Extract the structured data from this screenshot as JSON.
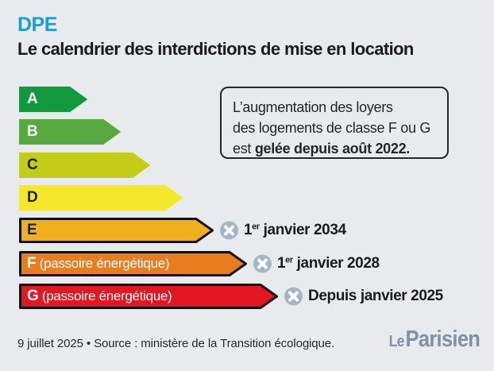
{
  "header": {
    "kicker": "DPE",
    "title": "Le calendrier des interdictions de mise en location"
  },
  "colors": {
    "background": "#e8ebed",
    "kicker_blue": "#1d9bd8",
    "title_text": "#1a1a1a",
    "infobox_border": "#23282b",
    "annotation_icon_circle": "#a3b6c3",
    "annotation_icon_cross": "#ffffff",
    "footer_text": "#23292d",
    "logo_gray_blue": "#7e93a1"
  },
  "chart_data": {
    "type": "bar",
    "orientation": "horizontal",
    "title": "Le calendrier des interdictions de mise en location",
    "subtitle_kicker": "DPE",
    "categories": [
      "A",
      "B",
      "C",
      "D",
      "E",
      "F",
      "G"
    ],
    "legend": false,
    "annotation_icon": "crossed-circle",
    "bars": [
      {
        "label": "A",
        "color": "#12993e",
        "label_color": "#ffffff",
        "outlined": false,
        "relative_length": 86,
        "ban": null
      },
      {
        "label": "B",
        "color": "#57a83f",
        "label_color": "#ffffff",
        "outlined": false,
        "relative_length": 128,
        "ban": null
      },
      {
        "label": "C",
        "color": "#c3cc16",
        "label_color": "#1a1a1a",
        "outlined": false,
        "relative_length": 165,
        "ban": null
      },
      {
        "label": "D",
        "color": "#f5e72b",
        "label_color": "#1a1a1a",
        "outlined": false,
        "relative_length": 206,
        "ban": null
      },
      {
        "label": "E",
        "color": "#f0b01d",
        "label_color": "#1a1a1a",
        "outlined": true,
        "relative_length": 245,
        "ban": "1er janvier 2034",
        "ban_date": {
          "pre": "1",
          "sup": "er",
          "rest": " janvier 2034"
        }
      },
      {
        "label": "F",
        "suffix": " (passoire énergétique)",
        "color": "#e97d1e",
        "label_color": "#ffffff",
        "outlined": true,
        "relative_length": 287,
        "ban": "1er janvier 2028",
        "ban_date": {
          "pre": "1",
          "sup": "er",
          "rest": " janvier 2028"
        }
      },
      {
        "label": "G",
        "suffix": " (passoire énergétique)",
        "color": "#e31622",
        "label_color": "#ffffff",
        "outlined": true,
        "relative_length": 326,
        "ban": "Depuis janvier 2025",
        "ban_date": {
          "pre": "",
          "sup": "",
          "rest": "Depuis janvier 2025"
        }
      }
    ]
  },
  "infobox": {
    "line1": "L’augmentation des loyers",
    "line2": "des logements de classe F ou G",
    "line3_regular": "est ",
    "line3_bold": "gelée depuis août 2022."
  },
  "footer": {
    "caption": "9 juillet 2025 • Source : ministère de la Transition écologique.",
    "logo_le": "Le",
    "logo_parisien": "Parisien"
  }
}
